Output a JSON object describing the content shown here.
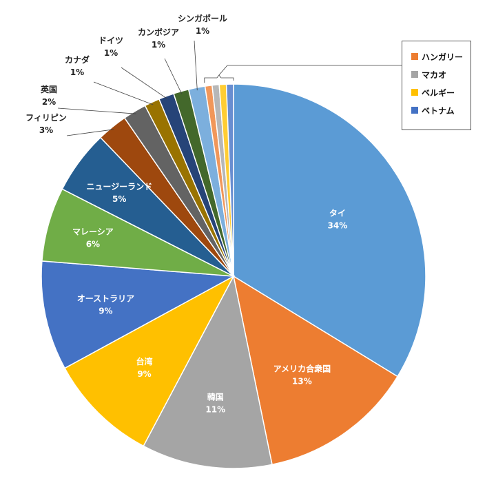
{
  "chart_data": {
    "type": "pie",
    "title": "",
    "slices": [
      {
        "name": "タイ",
        "label": "34%",
        "value": 34.1,
        "color": "#5B9BD5"
      },
      {
        "name": "アメリカ合衆国",
        "label": "13%",
        "value": 13.2,
        "color": "#ED7D31"
      },
      {
        "name": "韓国",
        "label": "11%",
        "value": 11.1,
        "color": "#A5A5A5"
      },
      {
        "name": "台湾",
        "label": "9%",
        "value": 9.4,
        "color": "#FFC000"
      },
      {
        "name": "オーストラリア",
        "label": "9%",
        "value": 9.3,
        "color": "#4472C4"
      },
      {
        "name": "マレーシア",
        "label": "6%",
        "value": 6.3,
        "color": "#70AD47"
      },
      {
        "name": "ニュージーランド",
        "label": "5%",
        "value": 5.4,
        "color": "#255E91"
      },
      {
        "name": "フィリピン",
        "label": "3%",
        "value": 2.6,
        "color": "#9E480E"
      },
      {
        "name": "英国",
        "label": "2%",
        "value": 2.0,
        "color": "#636363"
      },
      {
        "name": "カナダ",
        "label": "1%",
        "value": 1.3,
        "color": "#997300"
      },
      {
        "name": "ドイツ",
        "label": "1%",
        "value": 1.3,
        "color": "#264478"
      },
      {
        "name": "カンボジア",
        "label": "1%",
        "value": 1.3,
        "color": "#43682B"
      },
      {
        "name": "シンガポール",
        "label": "1%",
        "value": 1.4,
        "color": "#7CAFDD"
      },
      {
        "name": "ハンガリー",
        "label": "",
        "value": 0.6,
        "color": "#F1975A"
      },
      {
        "name": "マカオ",
        "label": "",
        "value": 0.6,
        "color": "#B7B7B7"
      },
      {
        "name": "ベルギー",
        "label": "",
        "value": 0.6,
        "color": "#FFCD33"
      },
      {
        "name": "ベトナム",
        "label": "",
        "value": 0.6,
        "color": "#698ED0"
      }
    ],
    "legend": {
      "position": "top-right",
      "items": [
        {
          "name": "ハンガリー",
          "color": "#ED7D31"
        },
        {
          "name": "マカオ",
          "color": "#A5A5A5"
        },
        {
          "name": "ベルギー",
          "color": "#FFC000"
        },
        {
          "name": "ベトナム",
          "color": "#4472C4"
        }
      ]
    }
  }
}
